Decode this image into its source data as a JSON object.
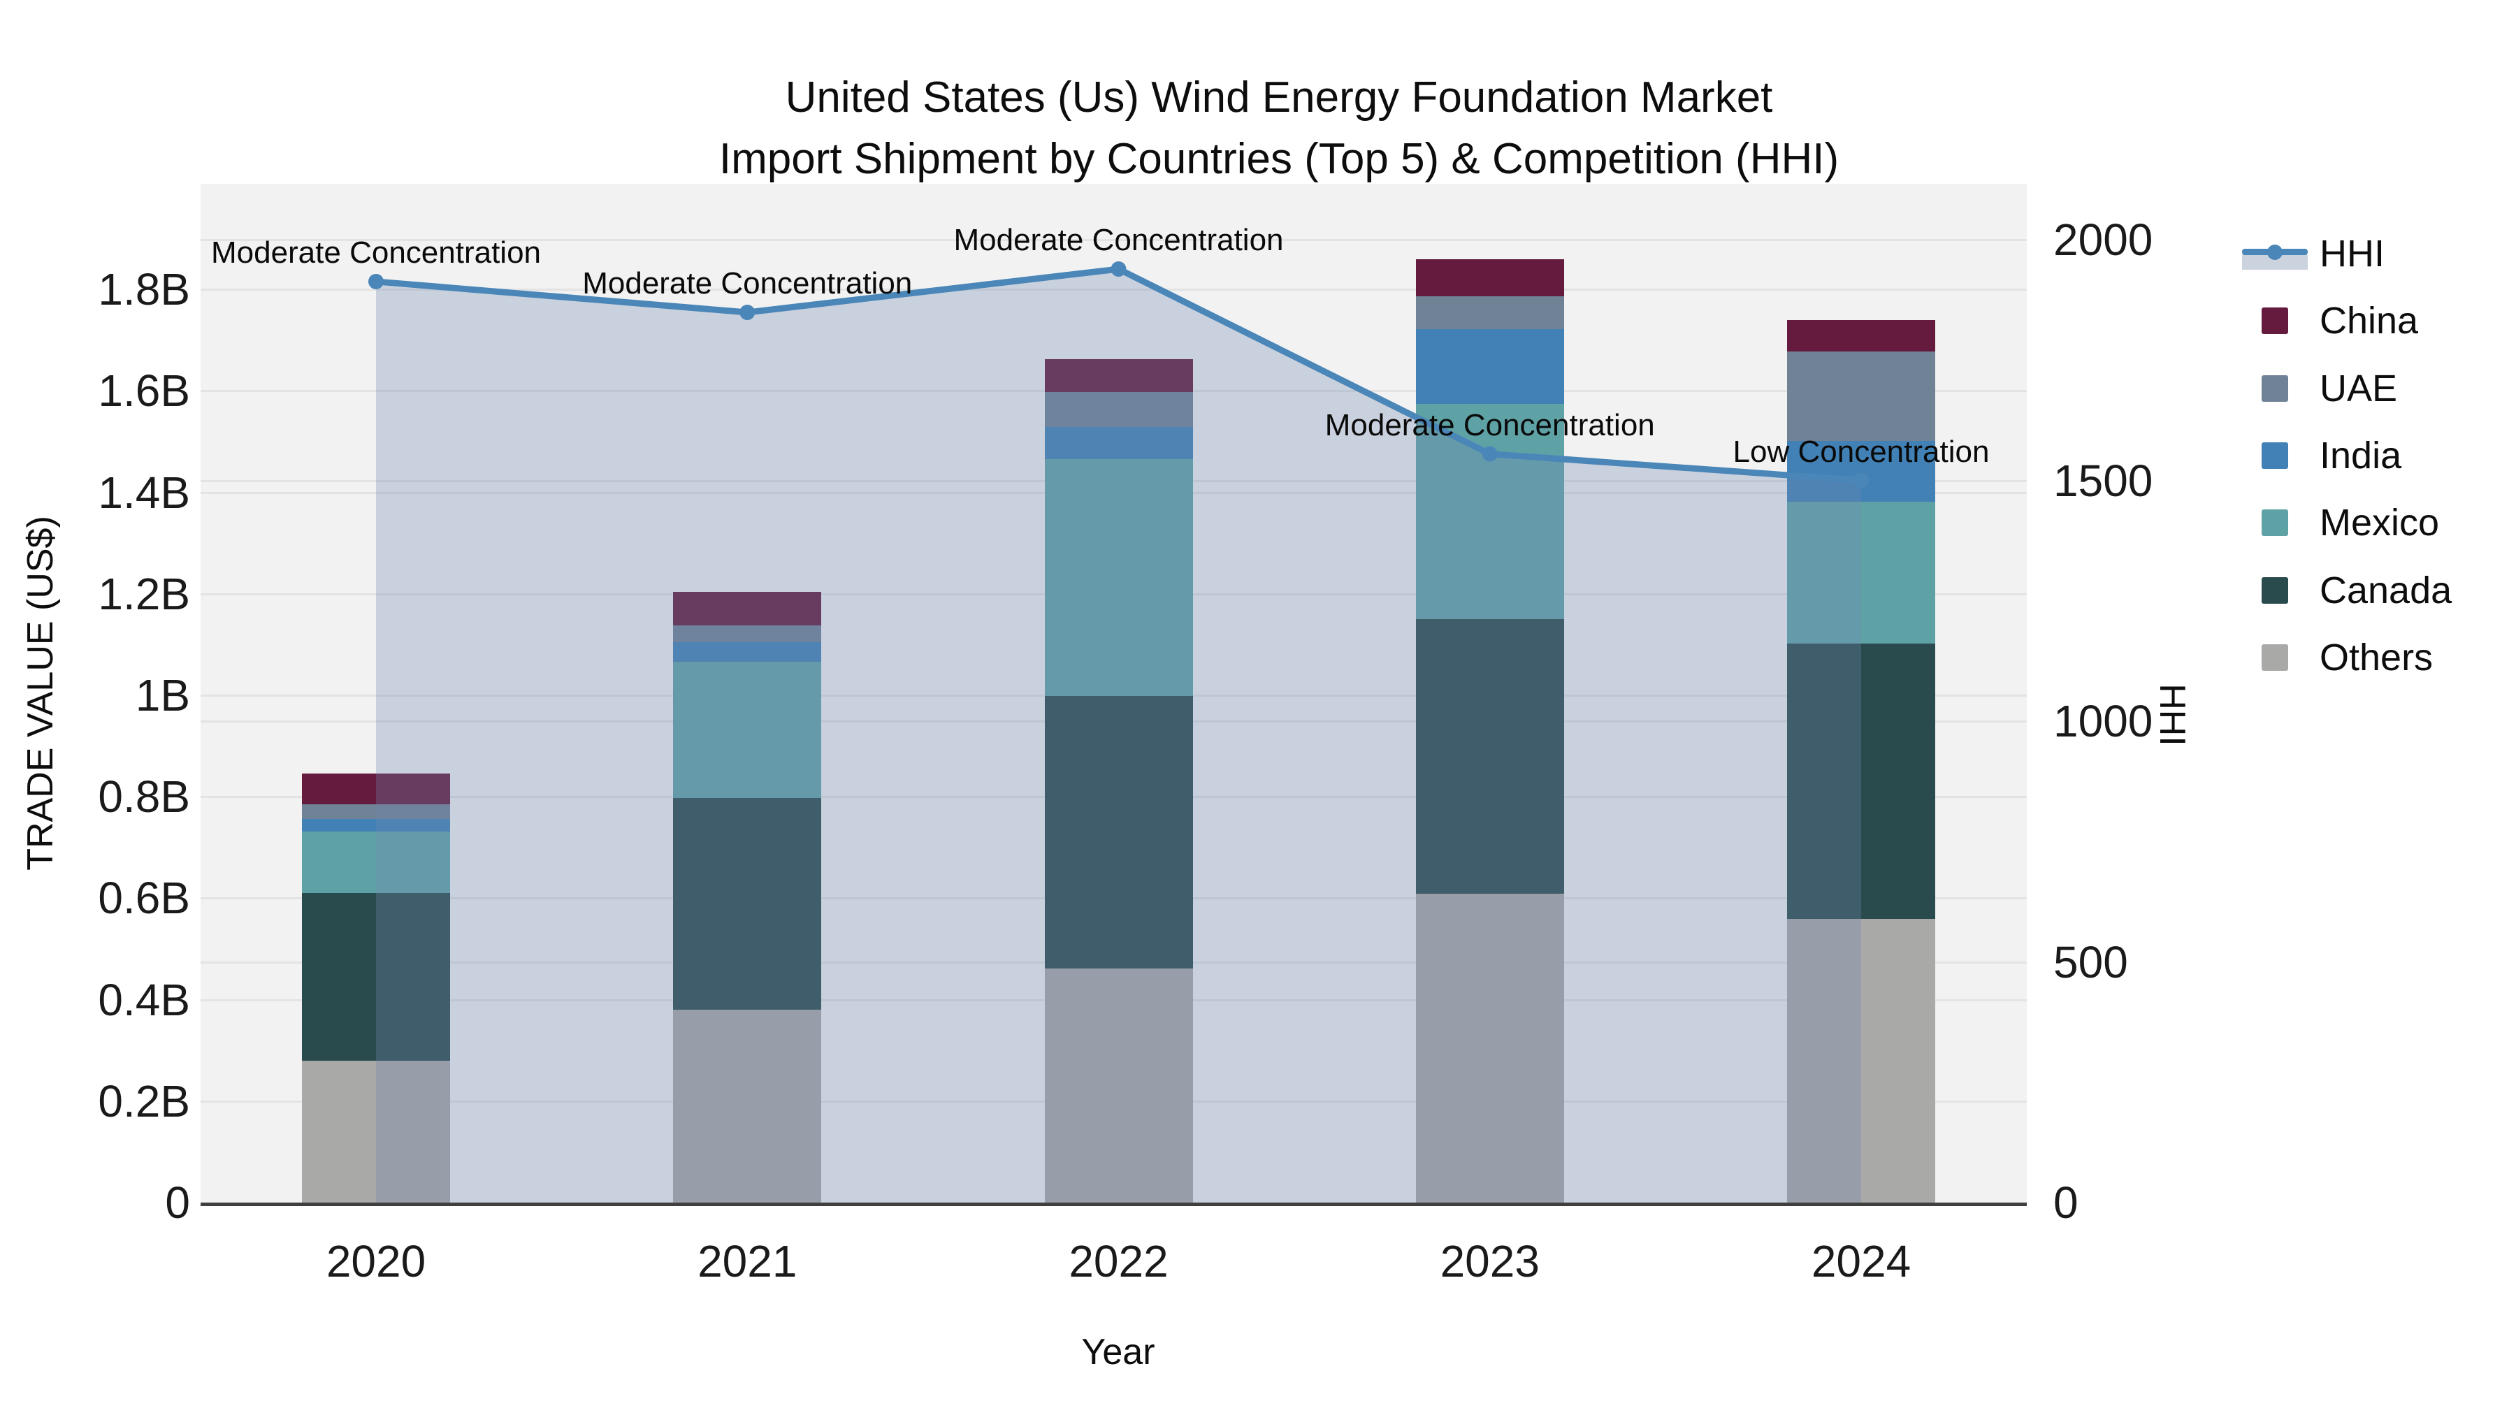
{
  "chart_data": {
    "type": "bar+line",
    "title_line1": "United States (Us) Wind Energy Foundation Market",
    "title_line2": "Import Shipment by Countries (Top 5) & Competition (HHI)",
    "xlabel": "Year",
    "ylabel_left": "TRADE VALUE (US$)",
    "ylabel_right": "HHI",
    "categories": [
      "2020",
      "2021",
      "2022",
      "2023",
      "2024"
    ],
    "stack_order_bottom_to_top": [
      "Others",
      "Canada",
      "Mexico",
      "India",
      "UAE",
      "China"
    ],
    "series": [
      {
        "name": "China",
        "unit": "billion US$",
        "values": [
          0.061,
          0.066,
          0.065,
          0.073,
          0.062
        ]
      },
      {
        "name": "UAE",
        "unit": "billion US$",
        "values": [
          0.029,
          0.033,
          0.069,
          0.064,
          0.177
        ]
      },
      {
        "name": "India",
        "unit": "billion US$",
        "values": [
          0.025,
          0.039,
          0.063,
          0.148,
          0.12
        ]
      },
      {
        "name": "Mexico",
        "unit": "billion US$",
        "values": [
          0.121,
          0.268,
          0.467,
          0.424,
          0.279
        ]
      },
      {
        "name": "Canada",
        "unit": "billion US$",
        "values": [
          0.33,
          0.418,
          0.538,
          0.541,
          0.543
        ]
      },
      {
        "name": "Others",
        "unit": "billion US$",
        "values": [
          0.28,
          0.38,
          0.461,
          0.609,
          0.559
        ]
      }
    ],
    "line_series": {
      "name": "HHI",
      "axis": "right",
      "values": [
        1913,
        1849,
        1939,
        1555,
        1500
      ],
      "area_fill": true
    },
    "annotations": [
      {
        "year": "2020",
        "text": "Moderate Concentration"
      },
      {
        "year": "2021",
        "text": "Moderate Concentration"
      },
      {
        "year": "2022",
        "text": "Moderate Concentration"
      },
      {
        "year": "2023",
        "text": "Moderate Concentration"
      },
      {
        "year": "2024",
        "text": "Low Concentration"
      }
    ],
    "ylim_left_billion": [
      0,
      1.98
    ],
    "ylim_right": [
      0,
      2000
    ],
    "grid": true,
    "legend_position": "right"
  },
  "axes": {
    "left": {
      "title": "TRADE VALUE (US$)",
      "ticks": [
        {
          "value": 0,
          "label": "0"
        },
        {
          "value": 0.2,
          "label": "0.2B"
        },
        {
          "value": 0.4,
          "label": "0.4B"
        },
        {
          "value": 0.6,
          "label": "0.6B"
        },
        {
          "value": 0.8,
          "label": "0.8B"
        },
        {
          "value": 1.0,
          "label": "1B"
        },
        {
          "value": 1.2,
          "label": "1.2B"
        },
        {
          "value": 1.4,
          "label": "1.4B"
        },
        {
          "value": 1.6,
          "label": "1.6B"
        },
        {
          "value": 1.8,
          "label": "1.8B"
        }
      ]
    },
    "right": {
      "title": "HHI",
      "ticks": [
        {
          "value": 0,
          "label": "0"
        },
        {
          "value": 500,
          "label": "500"
        },
        {
          "value": 1000,
          "label": "1000"
        },
        {
          "value": 1500,
          "label": "1500"
        },
        {
          "value": 2000,
          "label": "2000"
        }
      ]
    },
    "x": {
      "title": "Year"
    }
  },
  "legend": {
    "items": [
      {
        "label": "HHI",
        "type": "line"
      },
      {
        "label": "China",
        "type": "box"
      },
      {
        "label": "UAE",
        "type": "box"
      },
      {
        "label": "India",
        "type": "box"
      },
      {
        "label": "Mexico",
        "type": "box"
      },
      {
        "label": "Canada",
        "type": "box"
      },
      {
        "label": "Others",
        "type": "box"
      }
    ]
  },
  "colors": {
    "series": {
      "China": "#641b3d",
      "UAE": "#6f8296",
      "India": "#4181b5",
      "Mexico": "#5fa2a6",
      "Canada": "#2a4b4d",
      "Others": "#a9a9a7"
    },
    "hhi_line": "#4a86b8",
    "hhi_area_fill": "rgba(113,136,176,0.31)",
    "plot_background": "#f2f2f2",
    "gridline": "#e3e3e3",
    "axis_line": "#3f3f3f",
    "text": "#0d0d0d"
  }
}
